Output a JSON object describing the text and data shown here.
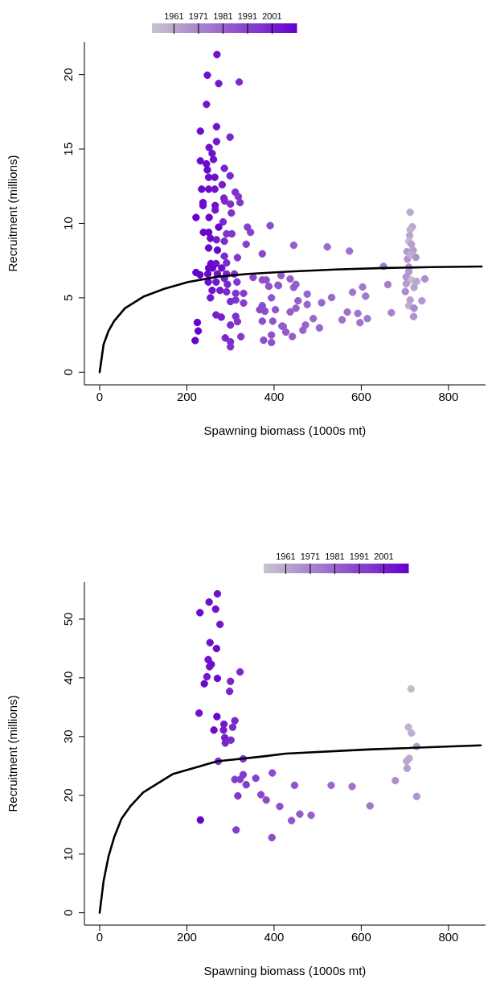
{
  "chart_data": [
    {
      "type": "scatter",
      "xlabel": "Spawning biomass (1000s mt)",
      "ylabel": "Recruitment (millions)",
      "xlim": [
        -35,
        885
      ],
      "ylim": [
        -0.85,
        22.2
      ],
      "xticks": [
        0,
        200,
        400,
        600,
        800
      ],
      "yticks": [
        0,
        5,
        10,
        15,
        20
      ],
      "marker": "circle",
      "clim": [
        1952,
        2011
      ],
      "cticks": [
        1961,
        1971,
        1981,
        1991,
        2001
      ],
      "colors": [
        "#c8c4cc",
        "#6600cc"
      ],
      "series": [
        {
          "type": "scatter",
          "x": [
            269,
            247,
            273,
            320,
            245,
            231,
            268,
            299,
            268,
            251,
            258,
            231,
            245,
            261,
            286,
            247,
            250,
            264,
            299,
            281,
            234,
            250,
            264,
            311,
            285,
            318,
            322,
            237,
            237,
            265,
            265,
            287,
            300,
            302,
            221,
            251,
            283,
            273,
            339,
            391,
            238,
            250,
            291,
            303,
            346,
            268,
            286,
            254,
            336,
            250,
            270,
            286,
            316,
            373,
            255,
            267,
            291,
            250,
            259,
            280,
            221,
            230,
            248,
            270,
            291,
            309,
            352,
            373,
            382,
            416,
            249,
            267,
            286,
            293,
            315,
            388,
            409,
            258,
            276,
            291,
            312,
            330,
            254,
            300,
            312,
            330,
            373,
            394,
            403,
            367,
            379,
            267,
            279,
            312,
            316,
            373,
            397,
            421,
            224,
            226,
            219,
            300,
            288,
            300,
            300,
            324,
            376,
            394,
            394,
            445,
            522,
            573,
            712,
            717,
            712,
            711,
            709,
            715,
            719,
            705,
            706,
            725,
            712,
            651,
            709,
            709,
            437,
            450,
            445,
            410,
            703,
            715,
            727,
            746,
            661,
            703,
            721,
            701,
            603,
            580,
            610,
            476,
            532,
            509,
            455,
            476,
            450,
            437,
            712,
            739,
            709,
            721,
            568,
            592,
            556,
            669,
            720,
            614,
            597,
            490,
            472,
            466,
            504,
            418,
            427,
            442
          ],
          "values": [
            21.35,
            19.96,
            19.4,
            19.5,
            18.0,
            16.2,
            16.5,
            15.8,
            15.5,
            15.1,
            14.7,
            14.2,
            14.0,
            14.3,
            13.7,
            13.6,
            13.1,
            13.1,
            13.2,
            12.6,
            12.3,
            12.3,
            12.3,
            12.1,
            11.7,
            11.8,
            11.4,
            11.4,
            11.2,
            11.2,
            10.9,
            11.5,
            11.3,
            10.7,
            10.4,
            10.4,
            10.1,
            9.75,
            9.75,
            9.85,
            9.4,
            9.4,
            9.3,
            9.3,
            9.4,
            8.9,
            8.8,
            9.0,
            8.6,
            8.35,
            8.2,
            7.8,
            7.7,
            7.96,
            7.3,
            7.3,
            7.35,
            7.0,
            7.0,
            7.0,
            6.7,
            6.55,
            6.6,
            6.6,
            6.6,
            6.6,
            6.37,
            6.2,
            6.2,
            6.5,
            6.06,
            6.06,
            6.3,
            5.9,
            6.06,
            5.77,
            5.85,
            5.5,
            5.5,
            5.4,
            5.3,
            5.3,
            5.0,
            4.75,
            4.85,
            4.65,
            4.47,
            5.0,
            4.2,
            4.2,
            4.1,
            3.85,
            3.7,
            3.75,
            3.4,
            3.43,
            3.43,
            3.08,
            3.34,
            2.77,
            2.13,
            3.17,
            2.3,
            2.04,
            1.71,
            2.39,
            2.15,
            2.0,
            2.5,
            8.53,
            8.42,
            8.14,
            10.75,
            9.77,
            9.57,
            9.18,
            8.8,
            8.6,
            8.19,
            8.1,
            7.6,
            7.72,
            7.9,
            7.11,
            7.06,
            6.75,
            6.27,
            5.9,
            5.7,
            5.82,
            6.4,
            6.2,
            6.1,
            6.27,
            5.89,
            5.95,
            5.7,
            5.42,
            5.73,
            5.37,
            5.11,
            5.25,
            5.02,
            4.67,
            4.8,
            4.55,
            4.3,
            4.05,
            4.85,
            4.8,
            4.47,
            4.3,
            4.04,
            3.95,
            3.52,
            4.0,
            3.74,
            3.6,
            3.33,
            3.6,
            3.17,
            2.82,
            2.98,
            3.1,
            2.7,
            2.4
          ],
          "cvalues": [
            2005,
            2006,
            2003,
            1998,
            2004,
            2007,
            2005,
            1999,
            2004,
            2005,
            2006,
            2007,
            2008,
            2006,
            2000,
            2008,
            2007,
            2006,
            1999,
            2002,
            2009,
            2007,
            2005,
            1996,
            2001,
            1995,
            1995,
            2008,
            2007,
            2006,
            2004,
            1999,
            1997,
            1996,
            2010,
            2009,
            2000,
            2010,
            1992,
            1988,
            2009,
            2010,
            1996,
            1995,
            1991,
            2001,
            1998,
            2008,
            1992,
            2009,
            2010,
            1999,
            1995,
            1989,
            2008,
            2006,
            1998,
            2010,
            2009,
            2007,
            2011,
            2010,
            2009,
            2006,
            2000,
            1996,
            1990,
            1987,
            1986,
            1984,
            2006,
            2004,
            2001,
            1999,
            1995,
            1986,
            1985,
            2005,
            2003,
            1999,
            1996,
            1993,
            2004,
            1998,
            1995,
            1993,
            1988,
            1986,
            1985,
            1989,
            1988,
            2002,
            2001,
            1996,
            1995,
            1988,
            1986,
            1984,
            2011,
            2011,
            2010,
            1997,
            1999,
            1997,
            1996,
            1994,
            1988,
            1987,
            1986,
            1983,
            1979,
            1977,
            1960,
            1961,
            1957,
            1962,
            1955,
            1963,
            1964,
            1965,
            1966,
            1967,
            1958,
            1974,
            1968,
            1965,
            1983,
            1982,
            1983,
            1985,
            1966,
            1954,
            1960,
            1968,
            1973,
            1964,
            1962,
            1969,
            1975,
            1976,
            1975,
            1981,
            1979,
            1980,
            1982,
            1981,
            1982,
            1983,
            1963,
            1966,
            1959,
            1970,
            1977,
            1976,
            1977,
            1972,
            1967,
            1975,
            1976,
            1980,
            1981,
            1981,
            1980,
            1984,
            1984,
            1983
          ],
          "colors": [
            "#7014cc",
            "#6e11cc",
            "#731bcc",
            "#7c2bcc",
            "#7217cc",
            "#6d0dcc",
            "#7014cc",
            "#7a28cc",
            "#7217cc",
            "#7014cc",
            "#6e11cc",
            "#6d0dcc",
            "#6b0acc",
            "#6e11cc",
            "#7825cc",
            "#6b0acc",
            "#6d0dcc",
            "#6e11cc",
            "#7a28cc",
            "#751ecc",
            "#6907cc",
            "#6d0dcc",
            "#7014cc",
            "#7f32cc",
            "#7721cc",
            "#8135cc",
            "#8135cc",
            "#6b0acc",
            "#6d0dcc",
            "#6e11cc",
            "#7217cc",
            "#7a28cc",
            "#7d2fcc",
            "#7f32cc",
            "#6803cc",
            "#6907cc",
            "#7825cc",
            "#6803cc",
            "#863fcc",
            "#8c4ccc",
            "#6907cc",
            "#6803cc",
            "#7f32cc",
            "#8135cc",
            "#8742cc",
            "#7721cc",
            "#7c2bcc",
            "#6b0acc",
            "#863fcc",
            "#6907cc",
            "#6803cc",
            "#7a28cc",
            "#8135cc",
            "#8b49cc",
            "#6b0acc",
            "#6e11cc",
            "#7c2bcc",
            "#6803cc",
            "#6907cc",
            "#6d0dcc",
            "#6600cc",
            "#6803cc",
            "#6907cc",
            "#6e11cc",
            "#7825cc",
            "#7f32cc",
            "#8946cc",
            "#8e50cc",
            "#9053cc",
            "#935acc",
            "#6e11cc",
            "#7217cc",
            "#7721cc",
            "#7a28cc",
            "#8135cc",
            "#9053cc",
            "#9156cc",
            "#7014cc",
            "#731bcc",
            "#7a28cc",
            "#7f32cc",
            "#843ccc",
            "#7217cc",
            "#7c2bcc",
            "#8135cc",
            "#843ccc",
            "#8c4ccc",
            "#9053cc",
            "#9156cc",
            "#8b49cc",
            "#8c4ccc",
            "#751ecc",
            "#7721cc",
            "#7f32cc",
            "#8135cc",
            "#8c4ccc",
            "#9053cc",
            "#935acc",
            "#6600cc",
            "#6600cc",
            "#6803cc",
            "#7d2fcc",
            "#7a28cc",
            "#7d2fcc",
            "#7f32cc",
            "#8238cc",
            "#8c4ccc",
            "#8e50cc",
            "#9053cc",
            "#955dcc",
            "#9b6acc",
            "#9e71cc",
            "#bba9cc",
            "#b9a6cc",
            "#c0b3cc",
            "#b7a3cc",
            "#c3bacc",
            "#b69fcc",
            "#b49ccc",
            "#b299cc",
            "#b195cc",
            "#af92cc",
            "#beb0cc",
            "#a37bcc",
            "#ad8fcc",
            "#b299cc",
            "#955dcc",
            "#9660cc",
            "#955dcc",
            "#9156cc",
            "#b195cc",
            "#c5bdcc",
            "#bba9cc",
            "#ad8fcc",
            "#a57ecc",
            "#b49ccc",
            "#b7a3cc",
            "#ac8bcc",
            "#a278cc",
            "#a074cc",
            "#a278cc",
            "#9864cc",
            "#9b6acc",
            "#9967cc",
            "#9660cc",
            "#9864cc",
            "#9660cc",
            "#955dcc",
            "#b69fcc",
            "#b195cc",
            "#bcadcc",
            "#aa88cc",
            "#9e71cc",
            "#a074cc",
            "#9e71cc",
            "#a782cc",
            "#af92cc",
            "#a278cc",
            "#a074cc",
            "#9967cc",
            "#9864cc",
            "#9864cc",
            "#9967cc",
            "#935acc",
            "#935acc",
            "#955dcc"
          ]
        },
        {
          "type": "line",
          "marker": "none",
          "color": "#000000",
          "x": [
            0,
            9,
            20,
            33,
            58,
            100,
            148,
            203,
            271,
            340,
            427,
            540,
            651,
            760,
            876
          ],
          "values": [
            0,
            1.87,
            2.75,
            3.43,
            4.3,
            5.07,
            5.6,
            6.06,
            6.42,
            6.6,
            6.75,
            6.9,
            7.0,
            7.06,
            7.1
          ]
        }
      ]
    },
    {
      "type": "scatter",
      "xlabel": "Spawning biomass (1000s mt)",
      "ylabel": "Recruitment (millions)",
      "xlim": [
        -35,
        885
      ],
      "ylim": [
        -2.1,
        56.3
      ],
      "xticks": [
        0,
        200,
        400,
        600,
        800
      ],
      "yticks": [
        0,
        10,
        20,
        30,
        40,
        50
      ],
      "marker": "circle",
      "clim": [
        1952,
        2011
      ],
      "cticks": [
        1961,
        1971,
        1981,
        1991,
        2001
      ],
      "colors": [
        "#c8c4cc",
        "#6600cc"
      ],
      "series": [
        {
          "type": "scatter",
          "x": [
            270,
            251,
            266,
            230,
            276,
            253,
            268,
            249,
            256,
            252,
            246,
            240,
            270,
            300,
            322,
            298,
            228,
            269,
            285,
            305,
            310,
            262,
            284,
            287,
            288,
            301,
            272,
            329,
            310,
            322,
            329,
            336,
            358,
            396,
            317,
            370,
            382,
            413,
            231,
            313,
            395,
            714,
            708,
            715,
            727,
            710,
            704,
            705,
            678,
            727,
            447,
            531,
            579,
            620,
            459,
            440,
            485
          ],
          "values": [
            54.3,
            52.9,
            51.7,
            51.1,
            49.1,
            46.0,
            45.0,
            43.1,
            42.3,
            41.9,
            40.2,
            39.0,
            39.9,
            39.4,
            41.0,
            37.7,
            34.0,
            33.4,
            32.1,
            31.6,
            32.7,
            31.1,
            31.1,
            29.8,
            28.9,
            29.4,
            25.8,
            26.2,
            22.7,
            22.7,
            23.5,
            21.8,
            22.9,
            23.8,
            19.9,
            20.1,
            19.2,
            18.1,
            15.8,
            14.1,
            12.8,
            38.1,
            31.6,
            30.6,
            28.3,
            26.3,
            25.8,
            24.6,
            22.5,
            19.8,
            21.7,
            21.7,
            21.5,
            18.2,
            16.8,
            15.7,
            16.6
          ],
          "cvalues": [
            2006,
            2007,
            2005,
            2008,
            2004,
            2005,
            2007,
            2005,
            2008,
            2006,
            2004,
            2009,
            2008,
            2000,
            1999,
            2000,
            2006,
            2009,
            2003,
            1998,
            1999,
            2007,
            2002,
            2001,
            2000,
            1998,
            1997,
            1996,
            1993,
            1992,
            1994,
            1993,
            1991,
            1988,
            1994,
            1990,
            1989,
            1987,
            2010,
            1993,
            1988,
            1955,
            1957,
            1958,
            1964,
            1959,
            1961,
            1963,
            1968,
            1966,
            1985,
            1980,
            1977,
            1975,
            1984,
            1985,
            1982
          ],
          "colors": [
            "#6e11cc",
            "#6d0dcc",
            "#7014cc",
            "#6b0acc",
            "#7217cc",
            "#7014cc",
            "#6d0dcc",
            "#7014cc",
            "#6b0acc",
            "#6e11cc",
            "#7217cc",
            "#6907cc",
            "#6b0acc",
            "#7825cc",
            "#7a28cc",
            "#7825cc",
            "#6e11cc",
            "#6907cc",
            "#731bcc",
            "#7c2bcc",
            "#7a28cc",
            "#6d0dcc",
            "#751ecc",
            "#7721cc",
            "#7825cc",
            "#7c2bcc",
            "#7d2fcc",
            "#7f32cc",
            "#843ccc",
            "#863fcc",
            "#8238cc",
            "#843ccc",
            "#8742cc",
            "#8c4ccc",
            "#8238cc",
            "#8946cc",
            "#8b49cc",
            "#8e50cc",
            "#6803cc",
            "#843ccc",
            "#8c4ccc",
            "#c3bacc",
            "#c0b3cc",
            "#beb0cc",
            "#b49ccc",
            "#bcadcc",
            "#b9a6cc",
            "#b69fcc",
            "#ad8fcc",
            "#b195cc",
            "#9156cc",
            "#9967cc",
            "#9e71cc",
            "#a278cc",
            "#935acc",
            "#9156cc",
            "#9660cc"
          ]
        },
        {
          "type": "line",
          "marker": "none",
          "color": "#000000",
          "x": [
            0,
            9,
            20,
            33,
            50,
            70,
            100,
            167,
            270,
            373,
            427,
            615,
            874
          ],
          "values": [
            0,
            5.4,
            9.5,
            12.8,
            16,
            18.1,
            20.5,
            23.6,
            25.8,
            26.6,
            27.1,
            27.8,
            28.5
          ]
        }
      ]
    }
  ]
}
